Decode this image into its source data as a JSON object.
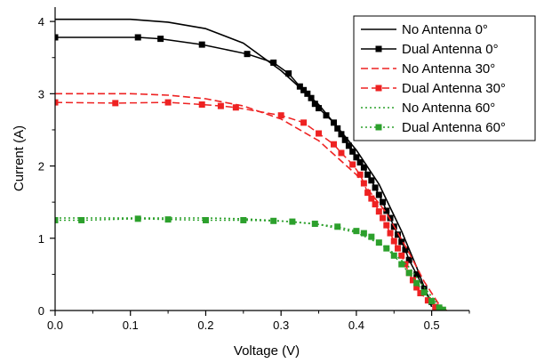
{
  "chart_data": {
    "type": "line",
    "title": "",
    "xlabel": "Voltage (V)",
    "ylabel": "Current (A)",
    "xlim": [
      0,
      0.55
    ],
    "ylim": [
      0,
      4.1
    ],
    "x_ticks": [
      0.0,
      0.1,
      0.2,
      0.3,
      0.4,
      0.5
    ],
    "x_tick_labels": [
      "0.0",
      "0.1",
      "0.2",
      "0.3",
      "0.4",
      "0.5"
    ],
    "y_ticks": [
      0,
      1,
      2,
      3,
      4
    ],
    "y_tick_labels": [
      "0",
      "1",
      "2",
      "3",
      "4"
    ],
    "grid": false,
    "legend_position": "top-right",
    "series": [
      {
        "name": "No Antenna 0°",
        "color": "#000000",
        "line_style": "solid",
        "marker": "none",
        "points": [
          [
            0.0,
            4.03
          ],
          [
            0.05,
            4.03
          ],
          [
            0.1,
            4.03
          ],
          [
            0.15,
            3.99
          ],
          [
            0.2,
            3.9
          ],
          [
            0.25,
            3.7
          ],
          [
            0.3,
            3.32
          ],
          [
            0.35,
            2.85
          ],
          [
            0.4,
            2.22
          ],
          [
            0.43,
            1.75
          ],
          [
            0.46,
            1.1
          ],
          [
            0.48,
            0.6
          ],
          [
            0.5,
            0.05
          ]
        ]
      },
      {
        "name": "Dual Antenna 0°",
        "color": "#000000",
        "line_style": "solid",
        "marker": "square",
        "points": [
          [
            0.0,
            3.78
          ],
          [
            0.11,
            3.78
          ],
          [
            0.14,
            3.76
          ],
          [
            0.195,
            3.68
          ],
          [
            0.255,
            3.55
          ],
          [
            0.29,
            3.43
          ],
          [
            0.31,
            3.28
          ],
          [
            0.325,
            3.1
          ],
          [
            0.33,
            3.05
          ],
          [
            0.335,
            3.0
          ],
          [
            0.34,
            2.94
          ],
          [
            0.345,
            2.86
          ],
          [
            0.35,
            2.8
          ],
          [
            0.36,
            2.7
          ],
          [
            0.37,
            2.6
          ],
          [
            0.375,
            2.52
          ],
          [
            0.38,
            2.44
          ],
          [
            0.385,
            2.36
          ],
          [
            0.39,
            2.28
          ],
          [
            0.395,
            2.2
          ],
          [
            0.4,
            2.12
          ],
          [
            0.405,
            2.05
          ],
          [
            0.41,
            1.98
          ],
          [
            0.415,
            1.88
          ],
          [
            0.42,
            1.8
          ],
          [
            0.425,
            1.7
          ],
          [
            0.43,
            1.6
          ],
          [
            0.435,
            1.5
          ],
          [
            0.44,
            1.38
          ],
          [
            0.445,
            1.28
          ],
          [
            0.45,
            1.16
          ],
          [
            0.455,
            1.05
          ],
          [
            0.46,
            0.95
          ],
          [
            0.465,
            0.84
          ],
          [
            0.47,
            0.7
          ],
          [
            0.48,
            0.5
          ],
          [
            0.49,
            0.3
          ],
          [
            0.5,
            0.12
          ],
          [
            0.505,
            0.02
          ]
        ]
      },
      {
        "name": "No Antenna 30°",
        "color": "#ee2222",
        "line_style": "dashed",
        "marker": "none",
        "points": [
          [
            0.0,
            3.0
          ],
          [
            0.05,
            3.0
          ],
          [
            0.1,
            3.0
          ],
          [
            0.15,
            2.98
          ],
          [
            0.2,
            2.93
          ],
          [
            0.25,
            2.83
          ],
          [
            0.3,
            2.65
          ],
          [
            0.35,
            2.35
          ],
          [
            0.4,
            1.88
          ],
          [
            0.44,
            1.35
          ],
          [
            0.47,
            0.8
          ],
          [
            0.49,
            0.4
          ],
          [
            0.51,
            0.08
          ],
          [
            0.52,
            0.0
          ]
        ]
      },
      {
        "name": "Dual Antenna 30°",
        "color": "#ee2222",
        "line_style": "dashed",
        "marker": "square",
        "points": [
          [
            0.0,
            2.88
          ],
          [
            0.08,
            2.87
          ],
          [
            0.15,
            2.88
          ],
          [
            0.195,
            2.85
          ],
          [
            0.22,
            2.83
          ],
          [
            0.24,
            2.81
          ],
          [
            0.3,
            2.7
          ],
          [
            0.33,
            2.6
          ],
          [
            0.35,
            2.45
          ],
          [
            0.37,
            2.3
          ],
          [
            0.38,
            2.18
          ],
          [
            0.395,
            2.02
          ],
          [
            0.405,
            1.88
          ],
          [
            0.41,
            1.76
          ],
          [
            0.415,
            1.63
          ],
          [
            0.42,
            1.55
          ],
          [
            0.425,
            1.47
          ],
          [
            0.43,
            1.37
          ],
          [
            0.435,
            1.28
          ],
          [
            0.44,
            1.18
          ],
          [
            0.445,
            1.07
          ],
          [
            0.45,
            0.96
          ],
          [
            0.455,
            0.86
          ],
          [
            0.46,
            0.76
          ],
          [
            0.465,
            0.64
          ],
          [
            0.47,
            0.52
          ],
          [
            0.475,
            0.42
          ],
          [
            0.48,
            0.32
          ],
          [
            0.485,
            0.24
          ],
          [
            0.495,
            0.14
          ],
          [
            0.505,
            0.05
          ],
          [
            0.51,
            0.01
          ]
        ]
      },
      {
        "name": "No Antenna 60°",
        "color": "#2ca02c",
        "line_style": "dotted",
        "marker": "none",
        "points": [
          [
            0.0,
            1.28
          ],
          [
            0.1,
            1.28
          ],
          [
            0.2,
            1.28
          ],
          [
            0.25,
            1.27
          ],
          [
            0.3,
            1.24
          ],
          [
            0.35,
            1.19
          ],
          [
            0.4,
            1.08
          ],
          [
            0.44,
            0.88
          ],
          [
            0.47,
            0.6
          ],
          [
            0.49,
            0.32
          ],
          [
            0.51,
            0.06
          ],
          [
            0.515,
            0.0
          ]
        ]
      },
      {
        "name": "Dual Antenna 60°",
        "color": "#2ca02c",
        "line_style": "dotted",
        "marker": "square",
        "points": [
          [
            0.0,
            1.25
          ],
          [
            0.035,
            1.25
          ],
          [
            0.11,
            1.27
          ],
          [
            0.15,
            1.26
          ],
          [
            0.2,
            1.25
          ],
          [
            0.25,
            1.25
          ],
          [
            0.29,
            1.24
          ],
          [
            0.315,
            1.23
          ],
          [
            0.345,
            1.2
          ],
          [
            0.375,
            1.16
          ],
          [
            0.4,
            1.1
          ],
          [
            0.41,
            1.07
          ],
          [
            0.42,
            1.02
          ],
          [
            0.43,
            0.94
          ],
          [
            0.44,
            0.86
          ],
          [
            0.45,
            0.76
          ],
          [
            0.46,
            0.64
          ],
          [
            0.47,
            0.52
          ],
          [
            0.48,
            0.38
          ],
          [
            0.49,
            0.25
          ],
          [
            0.5,
            0.13
          ],
          [
            0.51,
            0.04
          ],
          [
            0.515,
            0.01
          ]
        ]
      }
    ]
  }
}
